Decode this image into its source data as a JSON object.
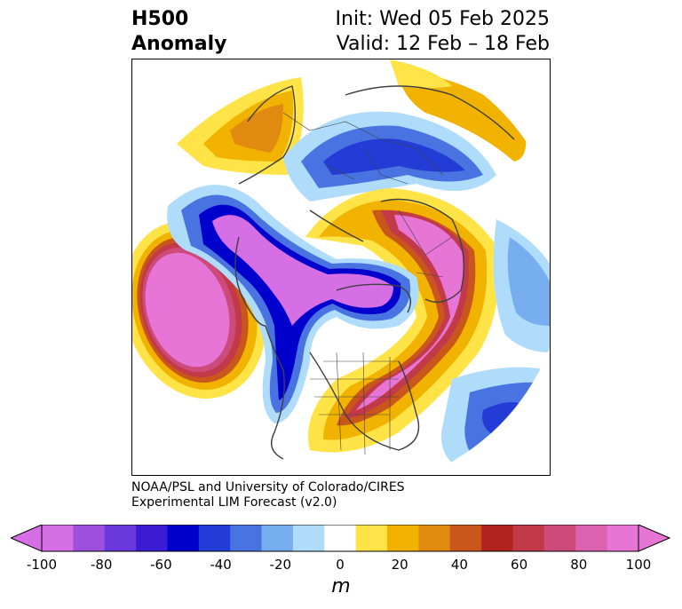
{
  "header": {
    "title_line1": "H500",
    "title_line2": "Anomaly",
    "init": "Init: Wed 05 Feb 2025",
    "valid": "Valid: 12 Feb – 18 Feb"
  },
  "credit": {
    "line1": "NOAA/PSL and University of Colorado/CIRES",
    "line2": "Experimental LIM Forecast (v2.0)"
  },
  "colorbar": {
    "unit": "m",
    "ticks": [
      "-100",
      "-80",
      "-60",
      "-40",
      "-20",
      "0",
      "20",
      "40",
      "60",
      "80",
      "100"
    ],
    "levels": [
      -100,
      -90,
      -80,
      -70,
      -60,
      -50,
      -40,
      -30,
      -20,
      -10,
      10,
      20,
      30,
      40,
      50,
      60,
      70,
      80,
      90,
      100
    ],
    "colors": [
      "#d66ee6",
      "#9e4fdd",
      "#6a37dd",
      "#3b1cd4",
      "#0000cc",
      "#233cd6",
      "#4a73e2",
      "#77aef0",
      "#aedcfa",
      "#ffffff",
      "#ffe347",
      "#f2b200",
      "#e08a10",
      "#c9561b",
      "#b2231f",
      "#c23a4a",
      "#cc4b7a",
      "#dc61b0",
      "#e775d6"
    ],
    "extend_min_color": "#d66ee6",
    "extend_max_color": "#e775d6"
  },
  "map": {
    "projection": "north-polar-stereographic",
    "field": "500 hPa geopotential height anomaly"
  }
}
